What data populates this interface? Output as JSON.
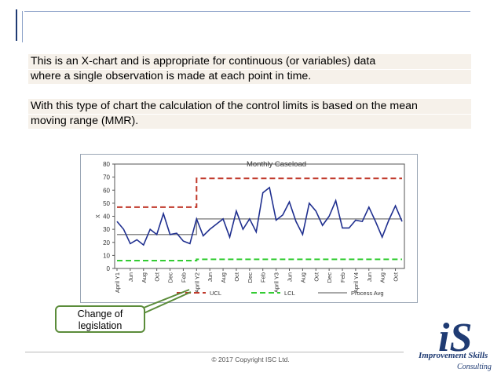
{
  "slide": {
    "paragraph1": "This is an X-chart and is appropriate for continuous (or variables) data where a single observation is made at each point in time.",
    "paragraph1_line1": "This is an X-chart and is appropriate for continuous (or variables) data",
    "paragraph1_line2": "where a single observation is made at each point in time.",
    "paragraph2_line1": "With this type of chart the calculation of the control limits is based on the mean",
    "paragraph2_line2": "moving range (MMR).",
    "callout_line1": "Change of",
    "callout_line2": "legislation",
    "copyright": "© 2017 Copyright ISC Ltd.",
    "logo_letters": "iS",
    "logo_line1": "Improvement Skills",
    "logo_line2": "Consulting"
  },
  "colors": {
    "series": "#1f2f8f",
    "ucl": "#c0392b",
    "lcl": "#33cc33",
    "process_avg": "#8c8c8c",
    "callout_border": "#5b8c3a",
    "logo": "#1f3b73"
  },
  "chart_data": {
    "type": "line",
    "title": "Monthly  Caseload",
    "ylim": [
      0,
      80
    ],
    "yticks": [
      "0",
      "10",
      "20",
      "30",
      "40",
      "50",
      "60",
      "70",
      "80"
    ],
    "ylabel": "X",
    "grid": false,
    "legend_position": "bottom",
    "x_tick_labels": [
      "April Y1",
      "Jun",
      "Aug",
      "Oct",
      "Dec",
      "Feb",
      "April Y2",
      "Jun",
      "Aug",
      "Oct",
      "Dec",
      "Feb",
      "April Y3",
      "Jun",
      "Aug",
      "Oct",
      "Dec",
      "Feb",
      "April Y4",
      "Jun",
      "Aug",
      "Oct"
    ],
    "series": [
      {
        "name": "Monthly Caseload",
        "values": [
          36,
          30,
          19,
          22,
          18,
          30,
          26,
          42,
          26,
          27,
          21,
          19,
          38,
          25,
          30,
          34,
          38,
          24,
          44,
          30,
          38,
          28,
          58,
          62,
          37,
          41,
          51,
          36,
          26,
          50,
          44,
          33,
          40,
          52,
          31,
          31,
          37,
          36,
          47,
          36,
          24,
          37,
          48,
          36
        ]
      },
      {
        "name": "UCL",
        "values": [
          47,
          47,
          47,
          47,
          47,
          47,
          47,
          47,
          47,
          47,
          47,
          47,
          69,
          69,
          69,
          69,
          69,
          69,
          69,
          69,
          69,
          69,
          69,
          69,
          69,
          69,
          69,
          69,
          69,
          69,
          69,
          69,
          69,
          69,
          69,
          69,
          69,
          69,
          69,
          69,
          69,
          69,
          69,
          69
        ]
      },
      {
        "name": "LCL",
        "values": [
          6,
          6,
          6,
          6,
          6,
          6,
          6,
          6,
          6,
          6,
          6,
          6,
          7,
          7,
          7,
          7,
          7,
          7,
          7,
          7,
          7,
          7,
          7,
          7,
          7,
          7,
          7,
          7,
          7,
          7,
          7,
          7,
          7,
          7,
          7,
          7,
          7,
          7,
          7,
          7,
          7,
          7,
          7,
          7
        ]
      },
      {
        "name": "Process Avg",
        "values": [
          26,
          26,
          26,
          26,
          26,
          26,
          26,
          26,
          26,
          26,
          26,
          26,
          38,
          38,
          38,
          38,
          38,
          38,
          38,
          38,
          38,
          38,
          38,
          38,
          38,
          38,
          38,
          38,
          38,
          38,
          38,
          38,
          38,
          38,
          38,
          38,
          38,
          38,
          38,
          38,
          38,
          38,
          38,
          38
        ]
      }
    ],
    "legend": [
      "UCL",
      "LCL",
      "Process Avg"
    ]
  }
}
